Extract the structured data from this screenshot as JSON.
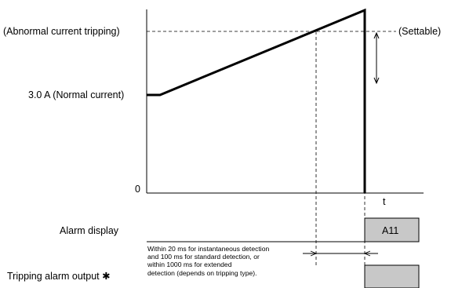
{
  "labels": {
    "abnormal_current": "(Abnormal current tripping)",
    "settable": "(Settable)",
    "normal_current": "3.0 A (Normal current)",
    "origin": "0",
    "time_axis": "t",
    "alarm_display": "Alarm display",
    "tripping_output": "Tripping alarm output ✱"
  },
  "alarm_code": "A11",
  "detection_note": "Within 20 ms for instantaneous detection\nand 100 ms for standard detection, or\nwithin 1000 ms for extended\ndetection (depends on tripping type).",
  "colors": {
    "line": "#000000",
    "box_fill": "#c8c8c8"
  }
}
